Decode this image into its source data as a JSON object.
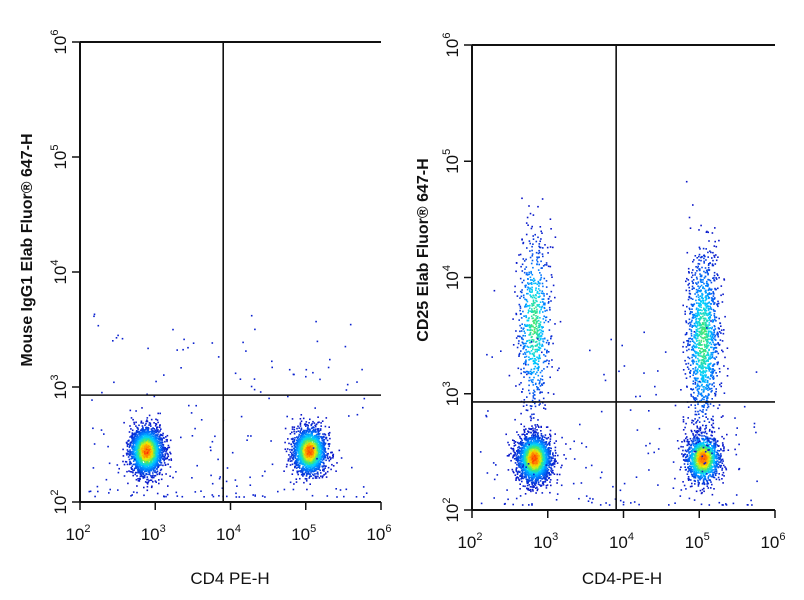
{
  "chart_data": [
    {
      "type": "scatter",
      "xlabel": "CD4 PE-H",
      "ylabel": "Mouse IgG1 Elab Fluor® 647-H",
      "xscale": "log",
      "yscale": "log",
      "xlim": [
        100,
        1000000
      ],
      "ylim": [
        100,
        1000000
      ],
      "x_ticks": [
        "10^2",
        "10^3",
        "10^4",
        "10^5",
        "10^6"
      ],
      "y_ticks": [
        "10^2",
        "10^3",
        "10^4",
        "10^5",
        "10^6"
      ],
      "gates": {
        "x": 8000,
        "y": 850
      },
      "populations": [
        {
          "center": [
            750,
            280
          ],
          "count": 2200,
          "note": "CD4- cluster"
        },
        {
          "center": [
            110000,
            280
          ],
          "count": 1800,
          "note": "CD4+ cluster"
        }
      ],
      "points_shown_as": "density-colored dots (blue low to red high)"
    },
    {
      "type": "scatter",
      "xlabel": "CD4-PE-H",
      "ylabel": "CD25 Elab Fluor® 647-H",
      "xscale": "log",
      "yscale": "log",
      "xlim": [
        100,
        1000000
      ],
      "ylim": [
        100,
        1000000
      ],
      "x_ticks": [
        "10^2",
        "10^3",
        "10^4",
        "10^5",
        "10^6"
      ],
      "y_ticks": [
        "10^2",
        "10^3",
        "10^4",
        "10^5",
        "10^6"
      ],
      "gates": {
        "x": 8000,
        "y": 850
      },
      "populations": [
        {
          "center": [
            650,
            280
          ],
          "count": 2200,
          "note": "CD4- CD25- cluster"
        },
        {
          "center": [
            650,
            4000
          ],
          "count": 700,
          "note": "CD4- CD25+ tail"
        },
        {
          "center": [
            110000,
            280
          ],
          "count": 1300,
          "note": "CD4+ CD25- cluster"
        },
        {
          "center": [
            110000,
            3000
          ],
          "count": 1200,
          "note": "CD4+ CD25+ column"
        }
      ],
      "points_shown_as": "density-colored dots (blue low to red high)"
    }
  ],
  "colors": {
    "low_density": "#0a14c8",
    "mid_density": "#00c8ff",
    "high_density": "#ff2a00",
    "axis": "#111111"
  }
}
